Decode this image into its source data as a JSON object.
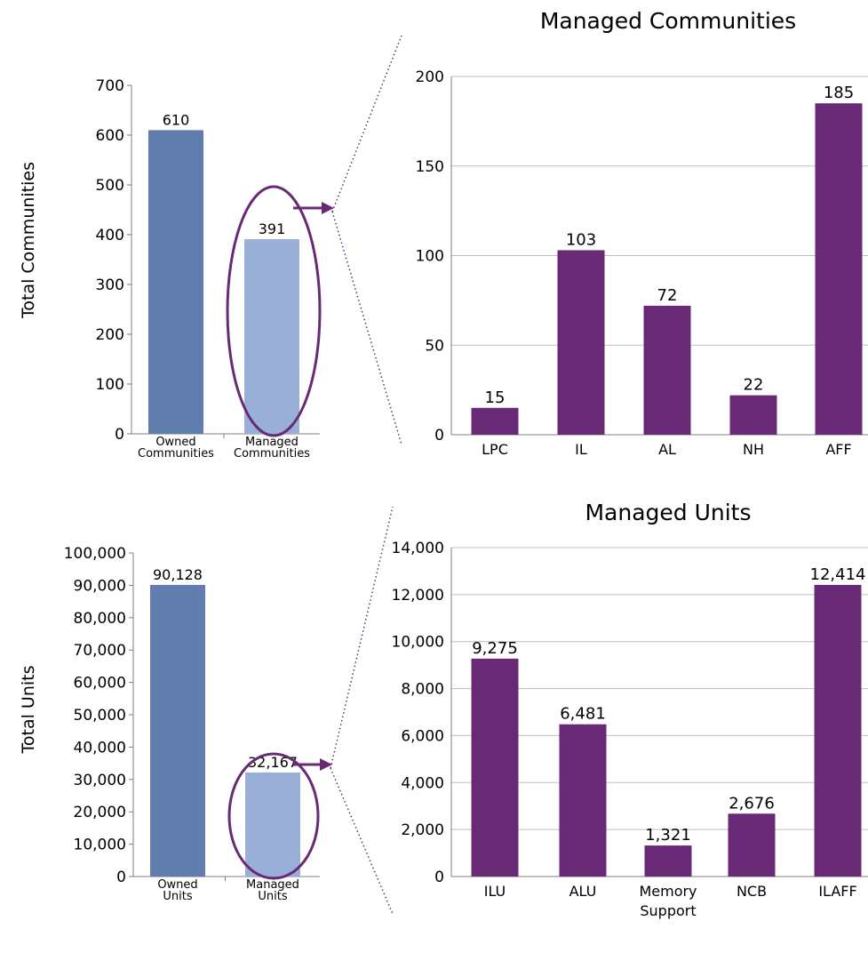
{
  "chart_data": [
    {
      "id": "total_communities",
      "type": "bar",
      "ylabel": "Total Communities",
      "categories": [
        [
          "Owned",
          "Communities"
        ],
        [
          "Managed",
          "Communities"
        ]
      ],
      "values": [
        610,
        391
      ],
      "value_labels": [
        "610",
        "391"
      ],
      "ylim": [
        0,
        700
      ],
      "yticks": [
        0,
        100,
        200,
        300,
        400,
        500,
        600,
        700
      ],
      "ytick_labels": [
        "0",
        "100",
        "200",
        "300",
        "400",
        "500",
        "600",
        "700"
      ],
      "colors": [
        "#607DAD",
        "#9AAFD5"
      ],
      "highlight": "Managed Communities"
    },
    {
      "id": "managed_communities",
      "type": "bar",
      "title": "Managed Communities",
      "categories": [
        [
          "LPC"
        ],
        [
          "IL"
        ],
        [
          "AL"
        ],
        [
          "NH"
        ],
        [
          "AFF"
        ]
      ],
      "values": [
        15,
        103,
        72,
        22,
        185
      ],
      "value_labels": [
        "15",
        "103",
        "72",
        "22",
        "185"
      ],
      "ylim": [
        0,
        200
      ],
      "yticks": [
        0,
        50,
        100,
        150,
        200
      ],
      "ytick_labels": [
        "0",
        "50",
        "100",
        "150",
        "200"
      ],
      "grid": true,
      "colors": [
        "#682A75"
      ]
    },
    {
      "id": "total_units",
      "type": "bar",
      "ylabel": "Total Units",
      "categories": [
        [
          "Owned",
          "Units"
        ],
        [
          "Managed",
          "Units"
        ]
      ],
      "values": [
        90128,
        32167
      ],
      "value_labels": [
        "90,128",
        "32,167"
      ],
      "ylim": [
        0,
        100000
      ],
      "yticks": [
        0,
        10000,
        20000,
        30000,
        40000,
        50000,
        60000,
        70000,
        80000,
        90000,
        100000
      ],
      "ytick_labels": [
        "0",
        "10,000",
        "20,000",
        "30,000",
        "40,000",
        "50,000",
        "60,000",
        "70,000",
        "80,000",
        "90,000",
        "100,000"
      ],
      "colors": [
        "#607DAD",
        "#9AAFD5"
      ],
      "highlight": "Managed Units"
    },
    {
      "id": "managed_units",
      "type": "bar",
      "title": "Managed Units",
      "categories": [
        [
          "ILU"
        ],
        [
          "ALU"
        ],
        [
          "Memory",
          "Support"
        ],
        [
          "NCB"
        ],
        [
          "ILAFF"
        ]
      ],
      "values": [
        9275,
        6481,
        1321,
        2676,
        12414
      ],
      "value_labels": [
        "9,275",
        "6,481",
        "1,321",
        "2,676",
        "12,414"
      ],
      "ylim": [
        0,
        14000
      ],
      "yticks": [
        0,
        2000,
        4000,
        6000,
        8000,
        10000,
        12000,
        14000
      ],
      "ytick_labels": [
        "0",
        "2,000",
        "4,000",
        "6,000",
        "8,000",
        "10,000",
        "12,000",
        "14,000"
      ],
      "grid": true,
      "colors": [
        "#682A75"
      ]
    }
  ],
  "annotation_color": "#682A75",
  "grid_color": "#BFBFBF",
  "axis_color": "#7F7F7F"
}
